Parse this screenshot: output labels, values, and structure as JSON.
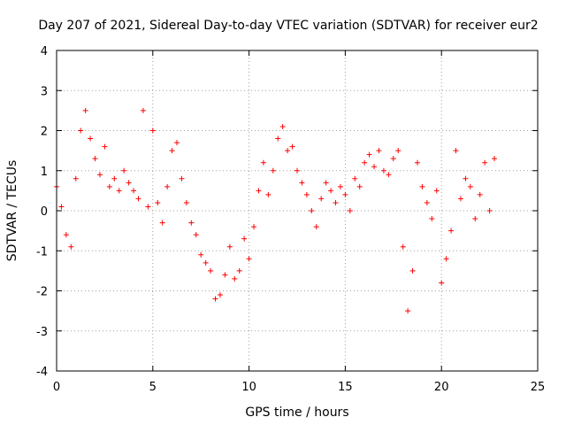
{
  "chart_data": {
    "type": "scatter",
    "title": "Day 207 of 2021, Sidereal Day-to-day VTEC variation (SDTVAR) for receiver eur2",
    "xlabel": "GPS time / hours",
    "ylabel": "SDTVAR / TECUs",
    "xlim": [
      0,
      25
    ],
    "ylim": [
      -4,
      4
    ],
    "xticks": [
      "0",
      "5",
      "10",
      "15",
      "20",
      "25"
    ],
    "yticks": [
      "-4",
      "-3",
      "-2",
      "-1",
      "0",
      "1",
      "2",
      "3",
      "4"
    ],
    "grid": true,
    "marker": "plus",
    "series": [
      {
        "name": "eur2",
        "color": "#ff0000",
        "x": [
          0.0,
          0.25,
          0.5,
          0.75,
          1.0,
          1.25,
          1.5,
          1.75,
          2.0,
          2.25,
          2.5,
          2.75,
          3.0,
          3.25,
          3.5,
          3.75,
          4.0,
          4.25,
          4.5,
          4.75,
          5.0,
          5.25,
          5.5,
          5.75,
          6.0,
          6.25,
          6.5,
          6.75,
          7.0,
          7.25,
          7.5,
          7.75,
          8.0,
          8.25,
          8.5,
          8.75,
          9.0,
          9.25,
          9.5,
          9.75,
          10.0,
          10.25,
          10.5,
          10.75,
          11.0,
          11.25,
          11.5,
          11.75,
          12.0,
          12.25,
          12.5,
          12.75,
          13.0,
          13.25,
          13.5,
          13.75,
          14.0,
          14.25,
          14.5,
          14.75,
          15.0,
          15.25,
          15.5,
          15.75,
          16.0,
          16.25,
          16.5,
          16.75,
          17.0,
          17.25,
          17.5,
          17.75,
          18.0,
          18.25,
          18.5,
          18.75,
          19.0,
          19.25,
          19.5,
          19.75,
          20.0,
          20.25,
          20.5,
          20.75,
          21.0,
          21.25,
          21.5,
          21.75,
          22.0,
          22.25,
          22.5,
          22.75
        ],
        "y": [
          0.6,
          0.1,
          -0.6,
          -0.9,
          0.8,
          2.0,
          2.5,
          1.8,
          1.3,
          0.9,
          1.6,
          0.6,
          0.8,
          0.5,
          1.0,
          0.7,
          0.5,
          0.3,
          2.5,
          0.1,
          2.0,
          0.2,
          -0.3,
          0.6,
          1.5,
          1.7,
          0.8,
          0.2,
          -0.3,
          -0.6,
          -1.1,
          -1.3,
          -1.5,
          -2.2,
          -2.1,
          -1.6,
          -0.9,
          -1.7,
          -1.5,
          -0.7,
          -1.2,
          -0.4,
          0.5,
          1.2,
          0.4,
          1.0,
          1.8,
          2.1,
          1.5,
          1.6,
          1.0,
          0.7,
          0.4,
          0.0,
          -0.4,
          0.3,
          0.7,
          0.5,
          0.2,
          0.6,
          0.4,
          0.0,
          0.8,
          0.6,
          1.2,
          1.4,
          1.1,
          1.5,
          1.0,
          0.9,
          1.3,
          1.5,
          -0.9,
          -2.5,
          -1.5,
          1.2,
          0.6,
          0.2,
          -0.2,
          0.5,
          -1.8,
          -1.2,
          -0.5,
          1.5,
          0.3,
          0.8,
          0.6,
          -0.2,
          0.4,
          1.2,
          0.0,
          1.3
        ]
      }
    ]
  }
}
